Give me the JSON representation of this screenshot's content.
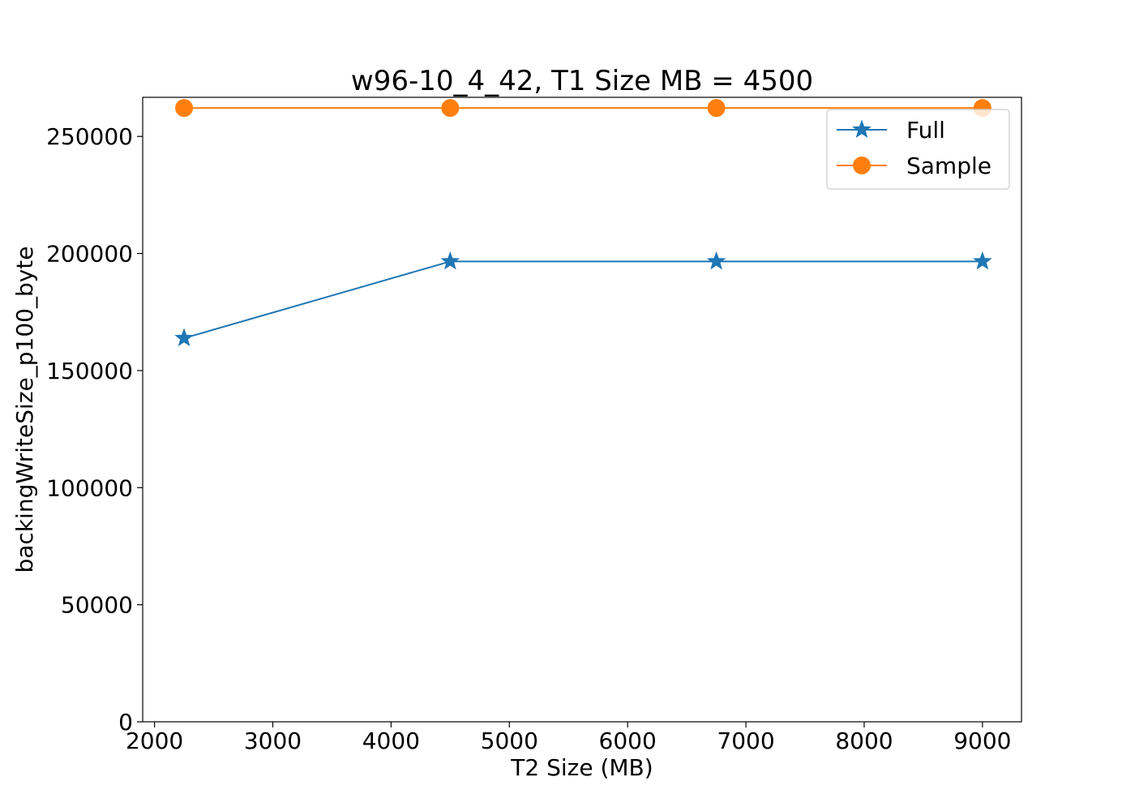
{
  "chart_data": {
    "type": "line",
    "title": "w96-10_4_42, T1 Size MB = 4500",
    "xlabel": "T2 Size (MB)",
    "ylabel": "backingWriteSize_p100_byte",
    "xlim": [
      1900,
      9330
    ],
    "ylim": [
      0,
      266700
    ],
    "xticks": [
      2000,
      3000,
      4000,
      5000,
      6000,
      7000,
      8000,
      9000
    ],
    "yticks": [
      0,
      50000,
      100000,
      150000,
      200000,
      250000
    ],
    "x": [
      2250,
      4500,
      6750,
      9000
    ],
    "grid": false,
    "legend_position": "upper right",
    "series": [
      {
        "name": "Full",
        "values": [
          163840,
          196608,
          196608,
          196608
        ],
        "color": "#1f77b4",
        "marker": "star"
      },
      {
        "name": "Sample",
        "values": [
          262144,
          262144,
          262144,
          262144
        ],
        "color": "#ff7f0e",
        "marker": "circle"
      }
    ]
  }
}
